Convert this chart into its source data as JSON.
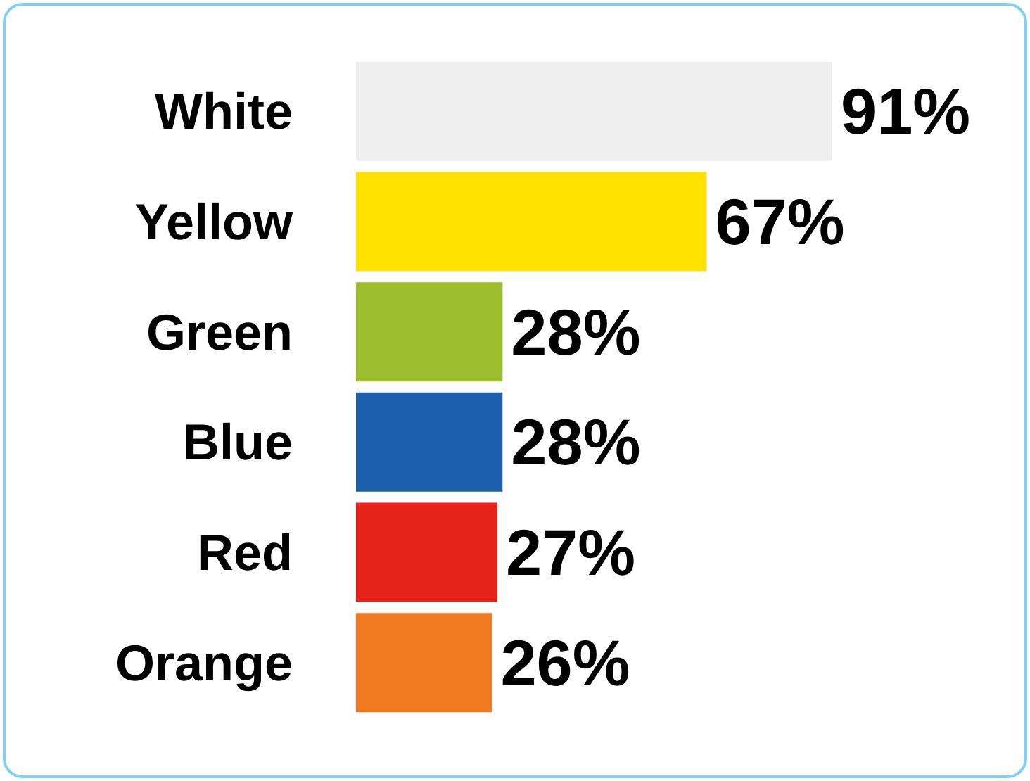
{
  "chart_data": {
    "type": "bar",
    "orientation": "horizontal",
    "categories": [
      "White",
      "Yellow",
      "Green",
      "Blue",
      "Red",
      "Orange"
    ],
    "values": [
      91,
      67,
      28,
      28,
      27,
      26
    ],
    "value_labels": [
      "91%",
      "67%",
      "28%",
      "28%",
      "27%",
      "26%"
    ],
    "colors": [
      "#efefef",
      "#ffe200",
      "#9bbd2e",
      "#1c5fac",
      "#e5231b",
      "#f07a22"
    ]
  }
}
